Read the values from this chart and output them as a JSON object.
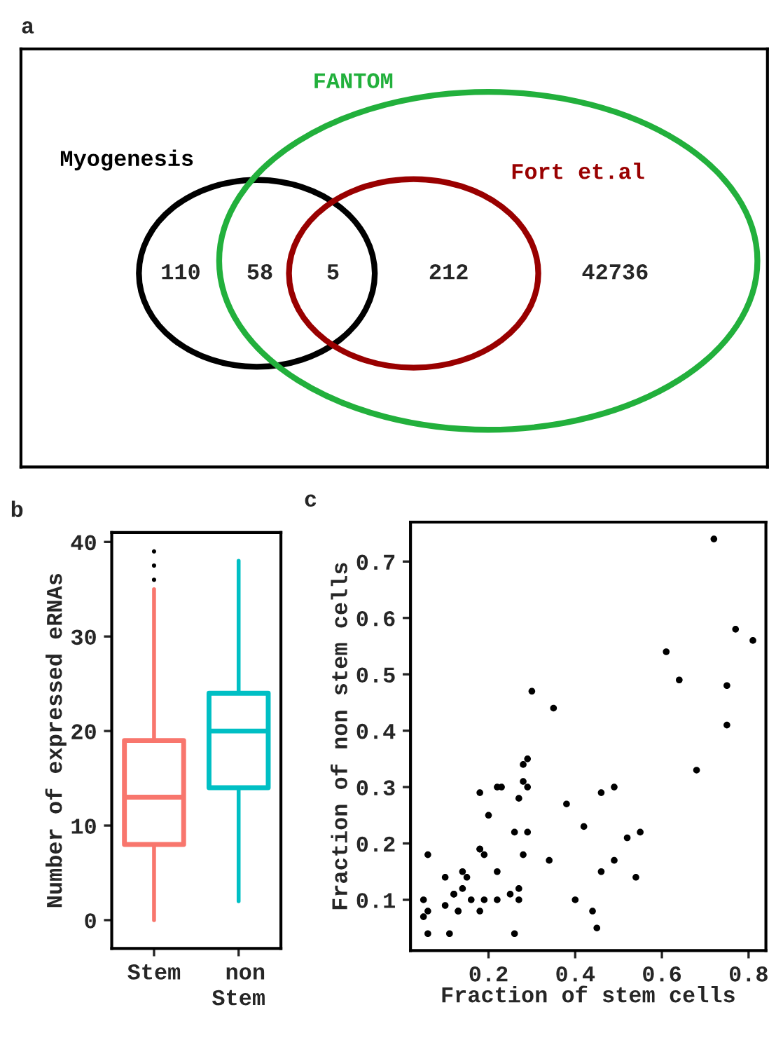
{
  "chart_data": [
    {
      "type": "other",
      "title": "a",
      "annotations": [
        "110",
        "58",
        "5",
        "212",
        "42736"
      ],
      "series": [
        {
          "name": "Myogenesis",
          "color": "#000000"
        },
        {
          "name": "FANTOM",
          "color": "#22b03c"
        },
        {
          "name": "Fort et.al",
          "color": "#990000"
        }
      ]
    },
    {
      "type": "box",
      "title": "b",
      "ylabel": "Number of expressed eRNAs",
      "categories": [
        "Stem",
        "non\nStem"
      ],
      "colors": [
        "#f8766d",
        "#00bfc4"
      ],
      "boxes": [
        {
          "low": 0,
          "q1": 8,
          "median": 13,
          "q3": 19,
          "high": 35,
          "outliers": [
            36,
            37.5,
            39
          ]
        },
        {
          "low": 2,
          "q1": 14,
          "median": 20,
          "q3": 24,
          "high": 38
        }
      ],
      "ylim": [
        -3,
        41
      ],
      "yticks": [
        0,
        10,
        20,
        30,
        40
      ],
      "grid": false
    },
    {
      "type": "scatter",
      "title": "c",
      "xlabel": "Fraction of stem cells",
      "ylabel": "Fraction of non stem cells",
      "color": "#000000",
      "x": [
        0.05,
        0.05,
        0.06,
        0.06,
        0.06,
        0.1,
        0.1,
        0.11,
        0.12,
        0.12,
        0.13,
        0.13,
        0.14,
        0.14,
        0.15,
        0.16,
        0.18,
        0.18,
        0.18,
        0.18,
        0.19,
        0.19,
        0.2,
        0.22,
        0.22,
        0.22,
        0.23,
        0.25,
        0.26,
        0.26,
        0.27,
        0.27,
        0.27,
        0.28,
        0.28,
        0.28,
        0.29,
        0.29,
        0.29,
        0.3,
        0.34,
        0.35,
        0.38,
        0.4,
        0.42,
        0.44,
        0.45,
        0.46,
        0.46,
        0.49,
        0.49,
        0.52,
        0.54,
        0.55,
        0.61,
        0.64,
        0.68,
        0.72,
        0.75,
        0.75,
        0.77,
        0.81
      ],
      "values": [
        0.1,
        0.07,
        0.08,
        0.04,
        0.18,
        0.14,
        0.09,
        0.04,
        0.11,
        0.11,
        0.08,
        0.08,
        0.15,
        0.12,
        0.14,
        0.1,
        0.08,
        0.29,
        0.19,
        0.19,
        0.18,
        0.1,
        0.25,
        0.15,
        0.1,
        0.3,
        0.3,
        0.11,
        0.04,
        0.22,
        0.1,
        0.28,
        0.12,
        0.18,
        0.31,
        0.34,
        0.35,
        0.3,
        0.22,
        0.47,
        0.17,
        0.44,
        0.27,
        0.1,
        0.23,
        0.08,
        0.05,
        0.29,
        0.15,
        0.3,
        0.17,
        0.21,
        0.14,
        0.22,
        0.54,
        0.49,
        0.33,
        0.74,
        0.48,
        0.41,
        0.58,
        0.56
      ],
      "xlim": [
        0.02,
        0.84
      ],
      "ylim": [
        0.01,
        0.77
      ],
      "xticks": [
        0.2,
        0.4,
        0.6,
        0.8
      ],
      "yticks": [
        0.1,
        0.2,
        0.3,
        0.4,
        0.5,
        0.6,
        0.7
      ],
      "grid": false
    }
  ]
}
